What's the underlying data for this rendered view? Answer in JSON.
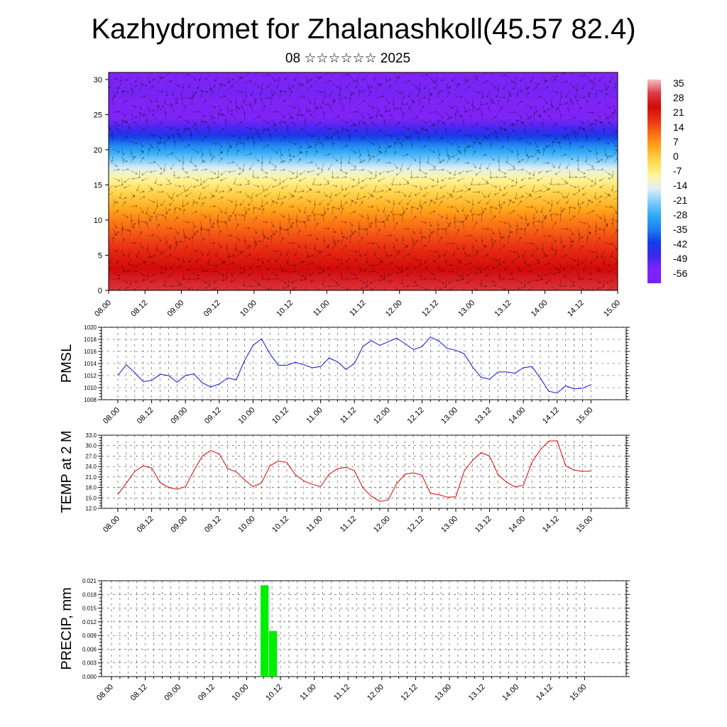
{
  "header": {
    "title": "Kazhydromet for Zhalanashkoll(45.57 82.4)",
    "subtitle": "08 ☆☆☆☆☆☆ 2025"
  },
  "colors": {
    "pmsl_line": "#1010e0",
    "temp_line": "#e00000",
    "precip_bar": "#00ee00",
    "wind_vectors": "#000000"
  },
  "chart_data": [
    {
      "type": "heatmap",
      "name": "cross-section",
      "yticks": [
        0,
        5,
        10,
        15,
        20,
        25,
        30
      ],
      "ylim": [
        0,
        31
      ],
      "x_labels": [
        "08.00",
        "08.12",
        "09.00",
        "09.12",
        "10.00",
        "10.12",
        "11.00",
        "11.12",
        "12.00",
        "12.12",
        "13.00",
        "13.12",
        "14.00",
        "14.12",
        "15.00"
      ],
      "colorbar": {
        "labels": [
          "35",
          "28",
          "21",
          "14",
          "7",
          "0",
          "-7",
          "-14",
          "-21",
          "-28",
          "-35",
          "-42",
          "-49",
          "-56"
        ],
        "range": [
          -63,
          42
        ]
      },
      "temperature_profile": {
        "levels": [
          0,
          5,
          10,
          14,
          17,
          20,
          23,
          25,
          28,
          31
        ],
        "values": [
          34,
          24,
          12,
          0,
          -12,
          -30,
          -50,
          -58,
          -55,
          -56
        ]
      },
      "overlay": "wind vectors"
    },
    {
      "type": "line",
      "ylabel": "PMSL",
      "ylim": [
        1008,
        1020
      ],
      "yticks": [
        "1008",
        "1010",
        "1012",
        "1014",
        "1016",
        "1018",
        "1020"
      ],
      "x_labels": [
        "08.00",
        "08.12",
        "09.00",
        "09.12",
        "10.00",
        "10.12",
        "11.00",
        "11.12",
        "12.00",
        "12.12",
        "13.00",
        "13.12",
        "14.00",
        "14.12",
        "15.00"
      ],
      "x_step_hours": 3,
      "values": [
        1012.0,
        1013.8,
        1012.5,
        1011.0,
        1011.2,
        1012.2,
        1012.0,
        1010.9,
        1012.0,
        1012.3,
        1010.8,
        1010.1,
        1010.6,
        1011.6,
        1011.3,
        1014.5,
        1017.0,
        1018.1,
        1015.6,
        1013.7,
        1013.7,
        1014.2,
        1013.8,
        1013.3,
        1013.5,
        1014.9,
        1014.3,
        1013.0,
        1014.0,
        1016.8,
        1017.8,
        1017.0,
        1017.6,
        1018.2,
        1017.3,
        1016.3,
        1016.8,
        1018.4,
        1017.7,
        1016.5,
        1016.2,
        1015.6,
        1013.4,
        1011.7,
        1011.4,
        1012.6,
        1012.6,
        1012.4,
        1013.3,
        1013.5,
        1011.6,
        1009.4,
        1009.1,
        1010.3,
        1009.8,
        1009.9,
        1010.5
      ]
    },
    {
      "type": "line",
      "ylabel": "TEMP at 2 M",
      "ylim": [
        12,
        33
      ],
      "yticks": [
        "12.0",
        "15.0",
        "18.0",
        "21.0",
        "24.0",
        "27.0",
        "30.0",
        "33.0"
      ],
      "x_labels": [
        "08.00",
        "08.12",
        "09.00",
        "09.12",
        "10.00",
        "10.12",
        "11.00",
        "11.12",
        "12.00",
        "12.12",
        "13.00",
        "13.12",
        "14.00",
        "14.12",
        "15.00"
      ],
      "x_step_hours": 3,
      "values": [
        16.0,
        19.2,
        22.6,
        24.2,
        23.6,
        19.4,
        18.0,
        17.5,
        18.2,
        22.8,
        27.0,
        28.6,
        27.6,
        23.4,
        22.5,
        20.2,
        18.2,
        19.3,
        24.2,
        25.6,
        25.2,
        21.7,
        19.9,
        18.9,
        18.3,
        21.8,
        23.4,
        23.8,
        22.8,
        17.9,
        15.5,
        14.0,
        14.4,
        19.1,
        21.8,
        22.2,
        21.5,
        16.3,
        15.9,
        15.2,
        15.3,
        22.7,
        25.8,
        28.0,
        27.0,
        21.7,
        19.5,
        18.2,
        18.6,
        25.2,
        28.8,
        31.3,
        31.4,
        24.2,
        23.0,
        22.6,
        22.7
      ]
    },
    {
      "type": "bar",
      "ylabel": "PRECIP, mm",
      "ylim": [
        0,
        0.021
      ],
      "yticks": [
        "0.000",
        "0.003",
        "0.006",
        "0.009",
        "0.012",
        "0.015",
        "0.018",
        "0.021"
      ],
      "x_labels": [
        "08.00",
        "08.12",
        "09.00",
        "09.12",
        "10.00",
        "10.12",
        "11.00",
        "11.12",
        "12.00",
        "12.12",
        "13.00",
        "13.12",
        "14.00",
        "14.12",
        "15.00"
      ],
      "bars": [
        {
          "hours": 48,
          "value": 0.02
        },
        {
          "hours": 51,
          "value": 0.01
        }
      ]
    }
  ]
}
